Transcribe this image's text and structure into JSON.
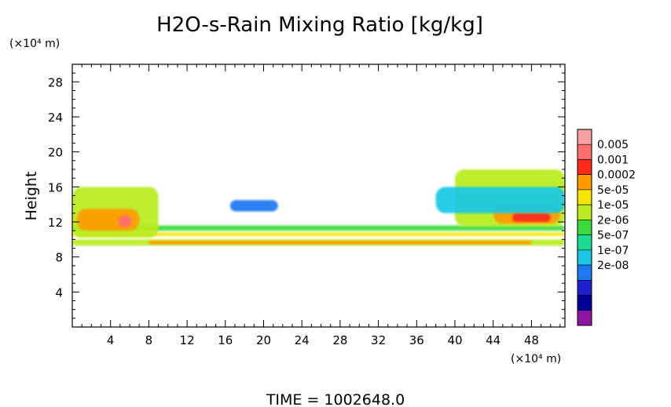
{
  "chart_data": {
    "type": "heatmap",
    "title": "H2O-s-Rain Mixing Ratio [kg/kg]",
    "ylabel": "Height",
    "xlabel": "",
    "x_unit": "(×10⁴ m)",
    "y_unit": "(×10⁴ m)",
    "footer": "TIME = 1002648.0",
    "xlim": [
      0,
      51.5
    ],
    "ylim": [
      0,
      30
    ],
    "x_ticks": [
      4,
      8,
      12,
      16,
      20,
      24,
      28,
      32,
      36,
      40,
      44,
      48
    ],
    "x_tick_labels": [
      "4",
      "8",
      "12",
      "16",
      "20",
      "24",
      "28",
      "32",
      "36",
      "40",
      "44",
      "48"
    ],
    "y_ticks": [
      4,
      8,
      12,
      16,
      20,
      24,
      28
    ],
    "y_tick_labels": [
      "4",
      "8",
      "12",
      "16",
      "20",
      "24",
      "28"
    ],
    "colorbar": {
      "labels": [
        "0.005",
        "0.001",
        "0.0002",
        "5e-05",
        "1e-05",
        "2e-06",
        "5e-07",
        "1e-07",
        "2e-08"
      ],
      "colors": [
        "#f4a0a0",
        "#ff6e6e",
        "#ff2a1a",
        "#ff9a00",
        "#f5e600",
        "#b8ec1c",
        "#3cdc3c",
        "#19dc96",
        "#19c8e6",
        "#1e78f0",
        "#1e1ed2",
        "#000096",
        "#8c14a0"
      ]
    },
    "regions": [
      {
        "level": 5,
        "x": [
          0,
          51.5
        ],
        "y": [
          9.3,
          10.0
        ]
      },
      {
        "level": 3,
        "x": [
          8,
          48
        ],
        "y": [
          9.45,
          9.85
        ]
      },
      {
        "level": 4,
        "x": [
          0,
          51.5
        ],
        "y": [
          10.4,
          10.8
        ]
      },
      {
        "level": 6,
        "x": [
          0,
          51.5
        ],
        "y": [
          11.0,
          11.6
        ]
      },
      {
        "level": 5,
        "x": [
          0,
          9
        ],
        "y": [
          10.2,
          16.0
        ]
      },
      {
        "level": 3,
        "x": [
          0.5,
          7
        ],
        "y": [
          11.0,
          13.5
        ]
      },
      {
        "level": 1,
        "x": [
          4.8,
          6.2
        ],
        "y": [
          11.4,
          12.8
        ]
      },
      {
        "level": 9,
        "x": [
          16.5,
          21.5
        ],
        "y": [
          13.2,
          14.5
        ]
      },
      {
        "level": 5,
        "x": [
          40,
          51.5
        ],
        "y": [
          11.5,
          18.0
        ]
      },
      {
        "level": 3,
        "x": [
          44,
          51
        ],
        "y": [
          11.8,
          14.0
        ]
      },
      {
        "level": 2,
        "x": [
          46,
          50
        ],
        "y": [
          12.0,
          13.0
        ]
      },
      {
        "level": 8,
        "x": [
          38,
          51.5
        ],
        "y": [
          13.0,
          16.0
        ]
      }
    ]
  }
}
